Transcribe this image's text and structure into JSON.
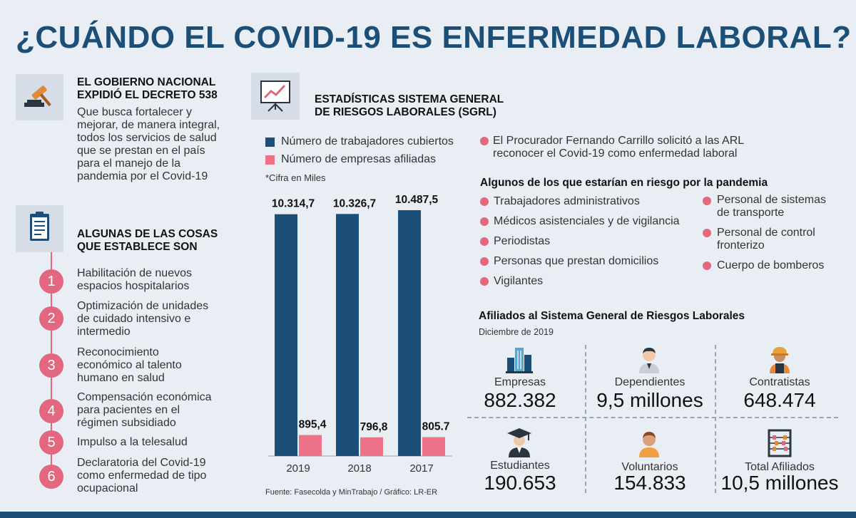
{
  "title": "¿CUÁNDO EL COVID-19 ES ENFERMEDAD LABORAL?",
  "decree": {
    "heading": [
      "EL GOBIERNO NACIONAL",
      "EXPIDIÓ EL DECRETO 538"
    ],
    "body": [
      "Que busca fortalecer y",
      "mejorar, de manera integral,",
      "todos los servicios de salud",
      "que se prestan en el país",
      "para el manejo de la",
      "pandemia por el Covid-19"
    ]
  },
  "establishes": {
    "heading": [
      "ALGUNAS DE LAS COSAS",
      "QUE ESTABLECE SON"
    ],
    "items": [
      {
        "n": "1",
        "lines": [
          "Habilitación de nuevos",
          "espacios hospitalarios"
        ]
      },
      {
        "n": "2",
        "lines": [
          "Optimización de unidades",
          "de cuidado intensivo e",
          "intermedio"
        ]
      },
      {
        "n": "3",
        "lines": [
          "Reconocimiento",
          "económico al talento",
          "humano en salud"
        ]
      },
      {
        "n": "4",
        "lines": [
          "Compensación económica",
          "para pacientes en el",
          "régimen subsidiado"
        ]
      },
      {
        "n": "5",
        "lines": [
          "Impulso a la telesalud"
        ]
      },
      {
        "n": "6",
        "lines": [
          "Declaratoria del Covid-19",
          "como enfermedad de tipo",
          "ocupacional"
        ]
      }
    ]
  },
  "sgrl": {
    "heading": [
      "ESTADÍSTICAS SISTEMA GENERAL",
      "DE RIESGOS LABORALES (SGRL)"
    ]
  },
  "chart_data": {
    "type": "bar",
    "categories": [
      "2019",
      "2018",
      "2017"
    ],
    "series": [
      {
        "name": "Número de trabajadores cubiertos",
        "values": [
          10314.7,
          10326.7,
          10487.5
        ],
        "labels": [
          "10.314,7",
          "10.326,7",
          "10.487,5"
        ],
        "color": "#1b4f78"
      },
      {
        "name": "Número de empresas afiliadas",
        "values": [
          895.4,
          796.8,
          805.7
        ],
        "labels": [
          "895,4",
          "796,8",
          "805.7"
        ],
        "color": "#ee7287"
      }
    ],
    "note": "*Cifra en Miles",
    "source": "Fuente: Fasecolda y MinTrabajo / Gráfico: LR-ER"
  },
  "procurador": [
    "El Procurador Fernando Carrillo solicitó a las ARL",
    "reconocer el Covid-19 como enfermedad laboral"
  ],
  "risk": {
    "heading": "Algunos de los que estarían en riesgo por la pandemia",
    "col1": [
      "Trabajadores administrativos",
      "Médicos asistenciales y de vigilancia",
      "Periodistas",
      "Personas que prestan domicilios",
      "Vigilantes"
    ],
    "col2": [
      [
        "Personal de sistemas",
        "de transporte"
      ],
      [
        "Personal de control",
        "fronterizo"
      ],
      [
        "Cuerpo de bomberos"
      ]
    ]
  },
  "affiliates": {
    "heading": "Afiliados al Sistema General de Riesgos Laborales",
    "date": "Diciembre de 2019",
    "cells": [
      {
        "label": "Empresas",
        "value": "882.382",
        "icon": "buildings-icon"
      },
      {
        "label": "Dependientes",
        "value": "9,5 millones",
        "icon": "employee-icon"
      },
      {
        "label": "Contratistas",
        "value": "648.474",
        "icon": "construction-worker-icon"
      },
      {
        "label": "Estudiantes",
        "value": "190.653",
        "icon": "graduate-icon"
      },
      {
        "label": "Voluntarios",
        "value": "154.833",
        "icon": "volunteer-icon"
      },
      {
        "label": "Total Afiliados",
        "value": "10,5 millones",
        "icon": "abacus-icon"
      }
    ]
  },
  "colors": {
    "navy": "#1b4f78",
    "pink": "#e2677f",
    "bg": "#e9eef5"
  }
}
